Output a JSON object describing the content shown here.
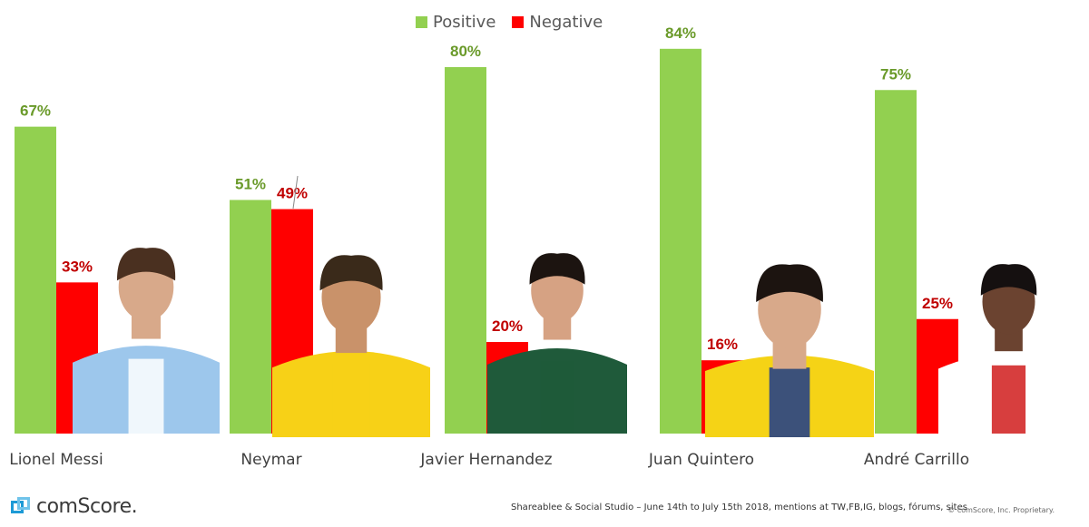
{
  "chart_data": {
    "type": "bar",
    "categories": [
      "Lionel Messi",
      "Neymar",
      "Javier Hernandez",
      "Juan Quintero",
      "André Carrillo"
    ],
    "series": [
      {
        "name": "Positive",
        "values": [
          67,
          51,
          80,
          84,
          75
        ],
        "color": "#92d050",
        "label_color": "#6a9a2a"
      },
      {
        "name": "Negative",
        "values": [
          33,
          49,
          20,
          16,
          25
        ],
        "color": "#ff0000",
        "label_color": "#c00000"
      }
    ],
    "value_suffix": "%",
    "ylim": [
      0,
      100
    ],
    "grid": false,
    "legend_position": "top-center",
    "title": "",
    "xlabel": "",
    "ylabel": ""
  },
  "legend": {
    "positive": "Positive",
    "negative": "Negative",
    "positive_color": "#92d050",
    "negative_color": "#ff0000"
  },
  "footer": {
    "logo": "comScore.",
    "source": "Shareablee & Social Studio – June 14th to July 15th 2018, mentions at TW,FB,IG, blogs, fórums, sites",
    "copyright": "© comScore, Inc. Proprietary."
  },
  "photos": [
    {
      "name": "messi-photo",
      "shirt": "#9dc7ec",
      "shirt2": "#ffffff",
      "skin": "#d8a98a",
      "hair": "#4a3020"
    },
    {
      "name": "neymar-photo",
      "shirt": "#f7d117",
      "shirt2": "#f7d117",
      "skin": "#c9926a",
      "hair": "#3a2a1a"
    },
    {
      "name": "hernandez-photo",
      "shirt": "#1f5a3a",
      "shirt2": "#1f5a3a",
      "skin": "#d6a283",
      "hair": "#1c1410"
    },
    {
      "name": "quintero-photo",
      "shirt": "#f5d316",
      "shirt2": "#1b3a8c",
      "skin": "#d8a98a",
      "hair": "#1c1410"
    },
    {
      "name": "carrillo-photo",
      "shirt": "#ffffff",
      "shirt2": "#d01c1c",
      "skin": "#6b4330",
      "hair": "#151010"
    }
  ]
}
